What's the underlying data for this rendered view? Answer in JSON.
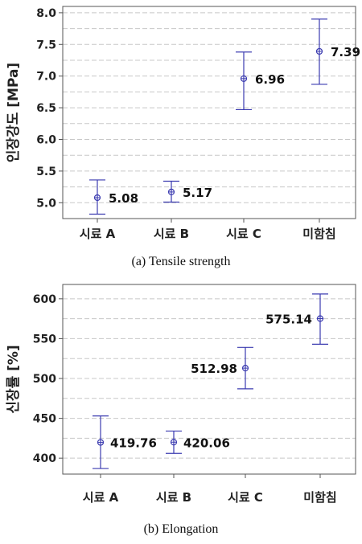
{
  "chart_data": [
    {
      "type": "scatter",
      "subtype": "interval-plot",
      "caption": "(a)  Tensile  strength",
      "ylabel": "인장강도 [MPa]",
      "categories": [
        "시료 A",
        "시료 B",
        "시료 C",
        "미함침"
      ],
      "mean": [
        5.08,
        5.17,
        6.96,
        7.39
      ],
      "lower": [
        4.82,
        5.01,
        6.47,
        6.87
      ],
      "upper": [
        5.36,
        5.34,
        7.38,
        7.9
      ],
      "data_labels": [
        "5.08",
        "5.17",
        "6.96",
        "7.39"
      ],
      "ylim": [
        4.75,
        8.1
      ],
      "yticks": [
        "5.0",
        "5.5",
        "6.0",
        "6.5",
        "7.0",
        "7.5",
        "8.0"
      ],
      "grid": true,
      "color": "#3b3bb0"
    },
    {
      "type": "scatter",
      "subtype": "interval-plot",
      "caption": "(b)  Elongation",
      "ylabel": "신장률 [%]",
      "categories": [
        "시료 A",
        "시료 B",
        "시료 C",
        "미함침"
      ],
      "mean": [
        419.76,
        420.06,
        512.98,
        575.14
      ],
      "lower": [
        387,
        406,
        487,
        543
      ],
      "upper": [
        453,
        434,
        539,
        606
      ],
      "data_labels": [
        "419.76",
        "420.06",
        "512.98",
        "575.14"
      ],
      "ylim": [
        380,
        618
      ],
      "yticks": [
        "400",
        "450",
        "500",
        "550",
        "600"
      ],
      "grid": true,
      "color": "#3b3bb0"
    }
  ]
}
